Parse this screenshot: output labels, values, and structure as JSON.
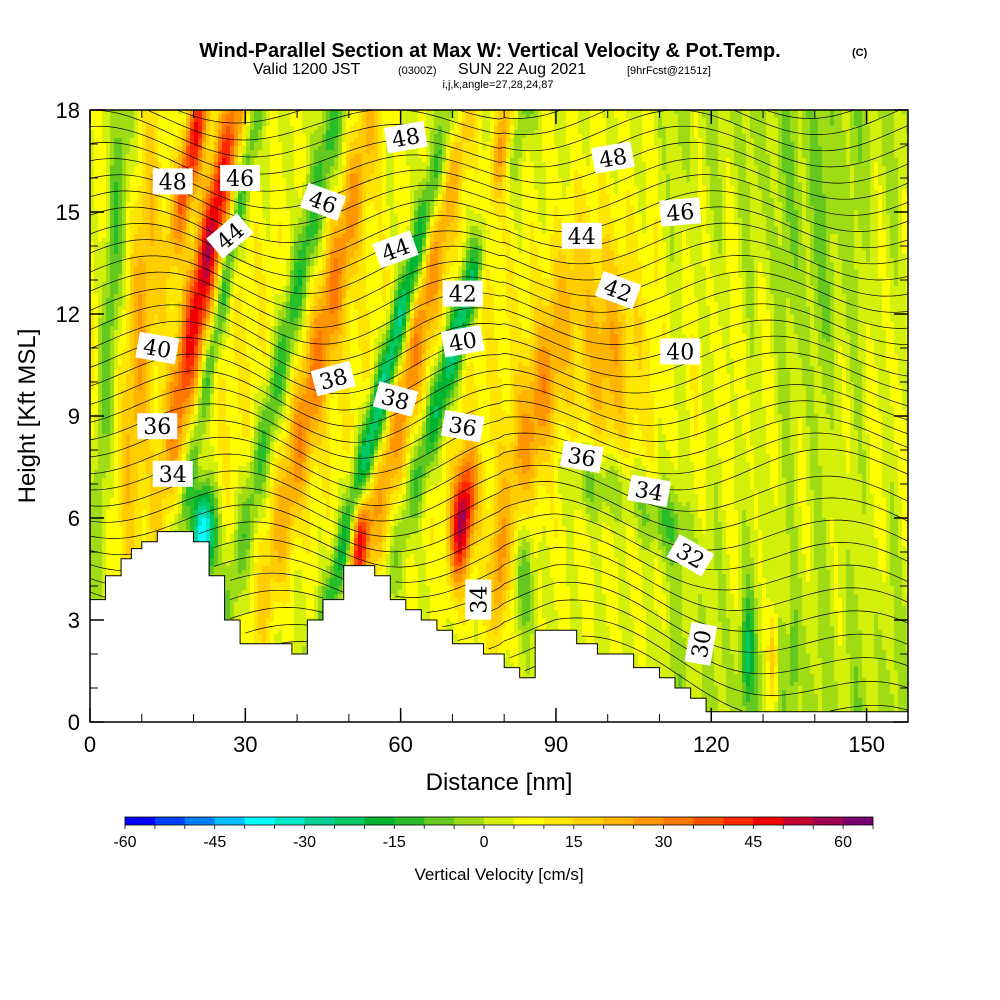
{
  "title": {
    "main": "Wind-Parallel Section at Max W: Vertical Velocity & Pot.Temp.",
    "copyright": "(C)",
    "valid_a": "Valid 1200 JST",
    "valid_b": "(0300Z)",
    "valid_c": "SUN 22 Aug 2021",
    "valid_d": "[9hrFcst@2151z]",
    "indices": "i,j,k,angle=27,28,24,87"
  },
  "chart_data": {
    "type": "heatmap",
    "xlabel": "Distance [nm]",
    "ylabel": "Height [Kft MSL]",
    "xlim": [
      0,
      158
    ],
    "ylim": [
      0,
      18
    ],
    "x_ticks": [
      0,
      30,
      60,
      90,
      120,
      150
    ],
    "y_ticks": [
      0,
      3,
      6,
      9,
      12,
      15,
      18
    ],
    "x_minor_step": 10,
    "y_minor_step": 1,
    "colorbar": {
      "title": "Vertical Velocity [cm/s]",
      "min": -60,
      "max": 65,
      "step": 5,
      "tick_values": [
        -60,
        -45,
        -30,
        -15,
        0,
        15,
        30,
        45,
        60
      ],
      "tick_labels": [
        "-60",
        "-45",
        "-30",
        "-15",
        "0",
        "15",
        "30",
        "45",
        "60"
      ],
      "colors": [
        "#0000ff",
        "#0040ff",
        "#0080ff",
        "#00c0ff",
        "#00ffff",
        "#00e6c8",
        "#00d296",
        "#00c864",
        "#00b432",
        "#28be28",
        "#64c81e",
        "#a0dc14",
        "#d2f00a",
        "#ffff00",
        "#ffe600",
        "#ffcd00",
        "#ffb400",
        "#ff9600",
        "#ff7800",
        "#ff5000",
        "#ff2800",
        "#f00000",
        "#c80032",
        "#a00050",
        "#78006e"
      ]
    },
    "terrain_kft": [
      [
        0,
        3.6
      ],
      [
        3,
        3.6
      ],
      [
        3,
        4.3
      ],
      [
        6,
        4.3
      ],
      [
        6,
        4.8
      ],
      [
        8,
        4.8
      ],
      [
        8,
        5.1
      ],
      [
        10,
        5.1
      ],
      [
        10,
        5.3
      ],
      [
        13,
        5.3
      ],
      [
        13,
        5.6
      ],
      [
        20,
        5.6
      ],
      [
        20,
        5.3
      ],
      [
        23,
        5.3
      ],
      [
        23,
        4.3
      ],
      [
        26,
        4.3
      ],
      [
        26,
        3.0
      ],
      [
        29,
        3.0
      ],
      [
        29,
        2.3
      ],
      [
        39,
        2.3
      ],
      [
        39,
        2.0
      ],
      [
        42,
        2.0
      ],
      [
        42,
        3.0
      ],
      [
        45,
        3.0
      ],
      [
        45,
        3.6
      ],
      [
        49,
        3.6
      ],
      [
        49,
        4.6
      ],
      [
        55,
        4.6
      ],
      [
        55,
        4.3
      ],
      [
        58,
        4.3
      ],
      [
        58,
        3.6
      ],
      [
        61,
        3.6
      ],
      [
        61,
        3.3
      ],
      [
        64,
        3.3
      ],
      [
        64,
        3.0
      ],
      [
        67,
        3.0
      ],
      [
        67,
        2.7
      ],
      [
        70,
        2.7
      ],
      [
        70,
        2.3
      ],
      [
        76,
        2.3
      ],
      [
        76,
        2.0
      ],
      [
        80,
        2.0
      ],
      [
        80,
        1.6
      ],
      [
        83,
        1.6
      ],
      [
        83,
        1.3
      ],
      [
        86,
        1.3
      ],
      [
        86,
        2.7
      ],
      [
        94,
        2.7
      ],
      [
        94,
        2.3
      ],
      [
        98,
        2.3
      ],
      [
        98,
        2.0
      ],
      [
        105,
        2.0
      ],
      [
        105,
        1.6
      ],
      [
        110,
        1.6
      ],
      [
        110,
        1.3
      ],
      [
        113,
        1.3
      ],
      [
        113,
        1.0
      ],
      [
        116,
        1.0
      ],
      [
        116,
        0.7
      ],
      [
        119,
        0.7
      ],
      [
        119,
        0.3
      ],
      [
        158,
        0.3
      ],
      [
        158,
        0
      ]
    ],
    "w_features": [
      {
        "cx": 23,
        "cy": 14,
        "w": 45,
        "sx": 2.6,
        "sy": 6,
        "slope": 1.2
      },
      {
        "cx": 20,
        "cy": 17,
        "w": 40,
        "sx": 2.2,
        "sy": 3,
        "slope": 1.2
      },
      {
        "cx": 22,
        "cy": 5.6,
        "w": -50,
        "sx": 2.2,
        "sy": 1.4,
        "slope": 0
      },
      {
        "cx": 25,
        "cy": 12,
        "w": -20,
        "sx": 1.6,
        "sy": 9,
        "slope": 1.2
      },
      {
        "cx": 4,
        "cy": 12,
        "w": -18,
        "sx": 2.0,
        "sy": 8,
        "slope": 0.4
      },
      {
        "cx": 10,
        "cy": 12,
        "w": 15,
        "sx": 2.5,
        "sy": 8,
        "slope": 0.4
      },
      {
        "cx": 39,
        "cy": 12,
        "w": -22,
        "sx": 2.4,
        "sy": 10,
        "slope": 1.4
      },
      {
        "cx": 46,
        "cy": 12,
        "w": 22,
        "sx": 3.0,
        "sy": 10,
        "slope": 1.4
      },
      {
        "cx": 52,
        "cy": 5.5,
        "w": 40,
        "sx": 1.8,
        "sy": 1.4,
        "slope": 0.5
      },
      {
        "cx": 57,
        "cy": 10,
        "w": -38,
        "sx": 2.2,
        "sy": 8,
        "slope": 1.6
      },
      {
        "cx": 74,
        "cy": 13,
        "w": -38,
        "sx": 2.5,
        "sy": 7,
        "slope": 1.8
      },
      {
        "cx": 72,
        "cy": 6,
        "w": 50,
        "sx": 2.2,
        "sy": 1.8,
        "slope": 0.5
      },
      {
        "cx": 64,
        "cy": 12,
        "w": 20,
        "sx": 3.0,
        "sy": 10,
        "slope": 1.4
      },
      {
        "cx": 79,
        "cy": 16,
        "w": 45,
        "sx": 2.2,
        "sy": 3,
        "slope": 1.2
      },
      {
        "cx": 86,
        "cy": 9,
        "w": 18,
        "sx": 4,
        "sy": 5,
        "slope": 1.5
      },
      {
        "cx": 100,
        "cy": 11,
        "w": 14,
        "sx": 5,
        "sy": 3,
        "slope": 0
      },
      {
        "cx": 98,
        "cy": 7,
        "w": -15,
        "sx": 6,
        "sy": 1.2,
        "slope": -1
      },
      {
        "cx": 110,
        "cy": 6,
        "w": -14,
        "sx": 5,
        "sy": 1.2,
        "slope": -1.5
      },
      {
        "cx": 84,
        "cy": 4.5,
        "w": -15,
        "sx": 2.0,
        "sy": 2,
        "slope": 0
      },
      {
        "cx": 79,
        "cy": 4,
        "w": 15,
        "sx": 1.5,
        "sy": 2,
        "slope": 0
      },
      {
        "cx": 127,
        "cy": 2,
        "w": -22,
        "sx": 1.2,
        "sy": 1.5,
        "slope": 0
      },
      {
        "cx": 132,
        "cy": 2,
        "w": 16,
        "sx": 1.0,
        "sy": 1.5,
        "slope": 0
      },
      {
        "cx": 136,
        "cy": 2,
        "w": -12,
        "sx": 0.8,
        "sy": 1.5,
        "slope": 0
      },
      {
        "cx": 140,
        "cy": 13,
        "w": -8,
        "sx": 10,
        "sy": 6,
        "slope": 0
      }
    ],
    "theta_levels": [
      48,
      46,
      44,
      42,
      40,
      38,
      36,
      34,
      32,
      30
    ],
    "contour_labels": [
      {
        "text": "48",
        "x": 16,
        "y": 15.9,
        "angle": 0
      },
      {
        "text": "46",
        "x": 29,
        "y": 16.0,
        "angle": 0
      },
      {
        "text": "44",
        "x": 27,
        "y": 14.3,
        "angle": -40
      },
      {
        "text": "46",
        "x": 45,
        "y": 15.3,
        "angle": 20
      },
      {
        "text": "48",
        "x": 61,
        "y": 17.2,
        "angle": -10
      },
      {
        "text": "44",
        "x": 59,
        "y": 13.9,
        "angle": -20
      },
      {
        "text": "42",
        "x": 72,
        "y": 12.6,
        "angle": 0
      },
      {
        "text": "40",
        "x": 72,
        "y": 11.2,
        "angle": -10
      },
      {
        "text": "38",
        "x": 47,
        "y": 10.1,
        "angle": -15
      },
      {
        "text": "38",
        "x": 59,
        "y": 9.5,
        "angle": 15
      },
      {
        "text": "36",
        "x": 72,
        "y": 8.7,
        "angle": 10
      },
      {
        "text": "40",
        "x": 13,
        "y": 11.0,
        "angle": 10
      },
      {
        "text": "36",
        "x": 13,
        "y": 8.7,
        "angle": 0
      },
      {
        "text": "34",
        "x": 16,
        "y": 7.3,
        "angle": 0
      },
      {
        "text": "48",
        "x": 101,
        "y": 16.6,
        "angle": -10
      },
      {
        "text": "46",
        "x": 114,
        "y": 15.0,
        "angle": -5
      },
      {
        "text": "44",
        "x": 95,
        "y": 14.3,
        "angle": 0
      },
      {
        "text": "42",
        "x": 102,
        "y": 12.7,
        "angle": 20
      },
      {
        "text": "40",
        "x": 114,
        "y": 10.9,
        "angle": 0
      },
      {
        "text": "36",
        "x": 95,
        "y": 7.8,
        "angle": 10
      },
      {
        "text": "34",
        "x": 108,
        "y": 6.8,
        "angle": 10
      },
      {
        "text": "32",
        "x": 116,
        "y": 4.9,
        "angle": 30
      },
      {
        "text": "34",
        "x": 75,
        "y": 3.6,
        "angle": -90
      },
      {
        "text": "30",
        "x": 118,
        "y": 2.3,
        "angle": -80
      }
    ]
  }
}
